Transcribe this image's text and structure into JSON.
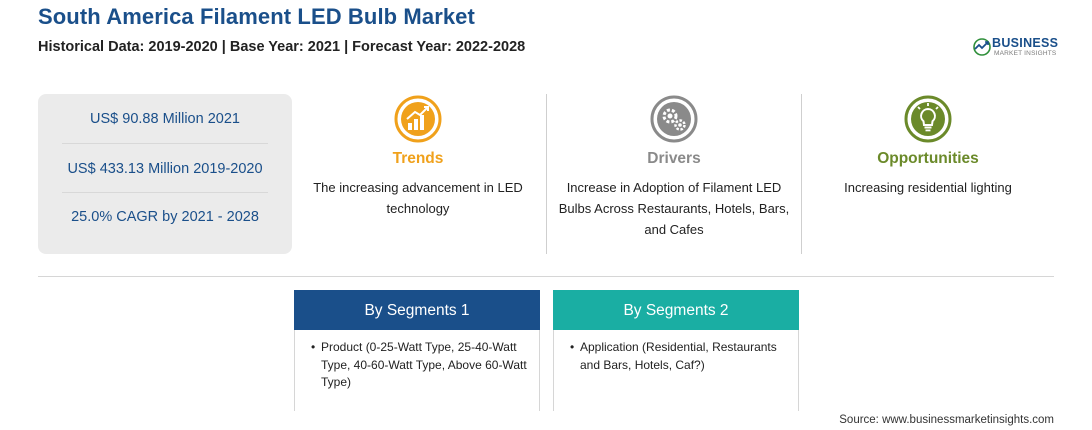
{
  "header": {
    "title": "South America Filament LED Bulb Market",
    "subtitle": "Historical Data: 2019-2020 | Base Year: 2021 | Forecast Year: 2022-2028"
  },
  "logo": {
    "name": "BUSINESS",
    "tagline": "MARKET INSIGHTS"
  },
  "stats": [
    {
      "text": "US$ 90.88 Million 2021"
    },
    {
      "text": "US$ 433.13 Million 2019-2020"
    },
    {
      "text": "25.0% CAGR by 2021 - 2028"
    }
  ],
  "columns": [
    {
      "heading": "Trends",
      "text": "The increasing advancement in LED technology",
      "color": "#f0a11b",
      "icon": "chart-growth-icon"
    },
    {
      "heading": "Drivers",
      "text": "Increase in Adoption of Filament LED Bulbs Across Restaurants, Hotels, Bars, and Cafes",
      "color": "#8a8a8a",
      "icon": "gears-icon"
    },
    {
      "heading": "Opportunities",
      "text": "Increasing residential lighting",
      "color": "#6b8a2a",
      "icon": "lightbulb-icon"
    }
  ],
  "segments": [
    {
      "heading": "By Segments 1",
      "color": "#1a4f8a",
      "text": "Product (0-25-Watt Type, 25-40-Watt Type, 40-60-Watt Type, Above 60-Watt Type)"
    },
    {
      "heading": "By Segments 2",
      "color": "#1aaea3",
      "text": "Application (Residential, Restaurants and Bars, Hotels, Caf?)"
    }
  ],
  "source": "Source: www.businessmarketinsights.com"
}
